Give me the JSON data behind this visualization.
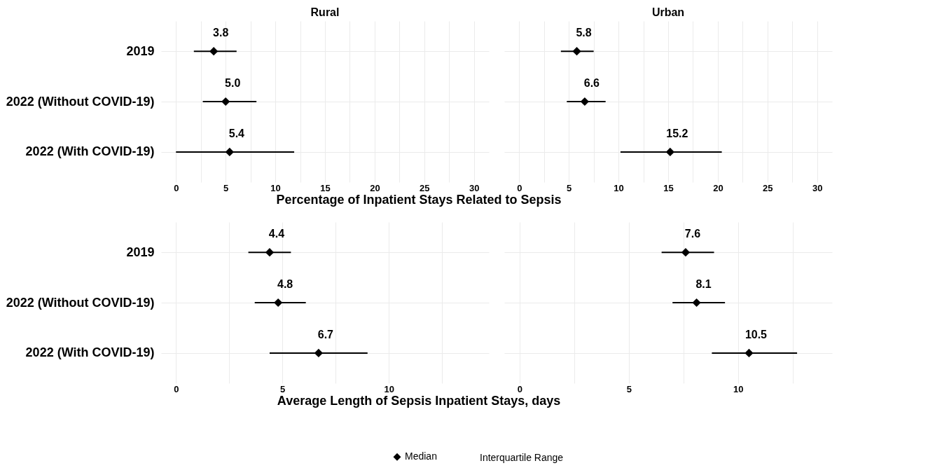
{
  "chart_data": [
    {
      "type": "scatter",
      "orientation": "horizontal",
      "title": "Rural",
      "xlabel": "Percentage of Inpatient Stays Related to Sepsis",
      "categories": [
        "2019",
        "2022 (Without COVID-19)",
        "2022 (With COVID-19)"
      ],
      "series": [
        {
          "color": "#000000",
          "values": [
            3.8,
            5.0,
            5.4
          ],
          "value_labels": [
            "3.8",
            "5.0",
            "5.4"
          ],
          "errors": [
            [
              1.8,
              6.1
            ],
            [
              2.7,
              8.1
            ],
            [
              0,
              11.9
            ]
          ]
        }
      ],
      "xlim": [
        -1.5,
        31.5
      ],
      "xticks": [
        0,
        {
          "value": 2.5,
          "label": null
        },
        5,
        {
          "value": 7.5,
          "label": null
        },
        10,
        {
          "value": 12.5,
          "label": null
        },
        15,
        {
          "value": 17.5,
          "label": null
        },
        20,
        {
          "value": 22.5,
          "label": null
        },
        25,
        {
          "value": 27.5,
          "label": null
        },
        30
      ],
      "grid": true,
      "marker": "diamond"
    },
    {
      "type": "scatter",
      "orientation": "horizontal",
      "title": "Urban",
      "categories": [
        null,
        null,
        null
      ],
      "series": [
        {
          "color": "#000000",
          "values": [
            5.8,
            6.6,
            15.2
          ],
          "value_labels": [
            "5.8",
            "6.6",
            "15.2"
          ],
          "errors": [
            [
              4.2,
              7.5
            ],
            [
              4.8,
              8.7
            ],
            [
              10.2,
              20.4
            ]
          ]
        }
      ],
      "xlim": [
        -1.5,
        31.5
      ],
      "xticks": [
        0,
        {
          "value": 2.5,
          "label": null
        },
        5,
        {
          "value": 7.5,
          "label": null
        },
        10,
        {
          "value": 12.5,
          "label": null
        },
        15,
        {
          "value": 17.5,
          "label": null
        },
        20,
        {
          "value": 22.5,
          "label": null
        },
        25,
        {
          "value": 27.5,
          "label": null
        },
        30
      ],
      "grid": true,
      "marker": "diamond",
      "tick_labels": "x"
    },
    {
      "type": "scatter",
      "orientation": "horizontal",
      "xlabel": "Average Length of Sepsis Inpatient Stays, days",
      "categories": [
        "2019",
        "2022 (Without COVID-19)",
        "2022 (With COVID-19)"
      ],
      "series": [
        {
          "color": "#000000",
          "values": [
            4.4,
            4.8,
            6.7
          ],
          "value_labels": [
            "4.4",
            "4.8",
            "6.7"
          ],
          "errors": [
            [
              3.4,
              5.4
            ],
            [
              3.7,
              6.1
            ],
            [
              4.4,
              9.0
            ]
          ]
        }
      ],
      "xlim": [
        -0.7,
        14.7
      ],
      "xticks": [
        0,
        {
          "value": 2.5,
          "label": null
        },
        5,
        {
          "value": 7.5,
          "label": null
        },
        10,
        {
          "value": 12.5,
          "label": null
        }
      ],
      "grid": true,
      "marker": "diamond"
    },
    {
      "type": "scatter",
      "orientation": "horizontal",
      "categories": [
        null,
        null,
        null
      ],
      "series": [
        {
          "name": "Median",
          "color": "#000000",
          "values": [
            7.6,
            8.1,
            10.5
          ],
          "value_labels": [
            "7.6",
            "8.1",
            "10.5"
          ],
          "errors": [
            [
              6.5,
              8.9
            ],
            [
              7.0,
              9.4
            ],
            [
              8.8,
              12.7
            ]
          ]
        }
      ],
      "xlim": [
        -0.7,
        14.3
      ],
      "xticks": [
        0,
        {
          "value": 2.5,
          "label": null
        },
        5,
        {
          "value": 7.5,
          "label": null
        },
        10,
        {
          "value": 12.5,
          "label": null
        }
      ],
      "grid": true,
      "marker": "diamond",
      "tick_labels": "x",
      "legend": "bottom",
      "annotations": [
        "Interquartile Range"
      ]
    }
  ]
}
